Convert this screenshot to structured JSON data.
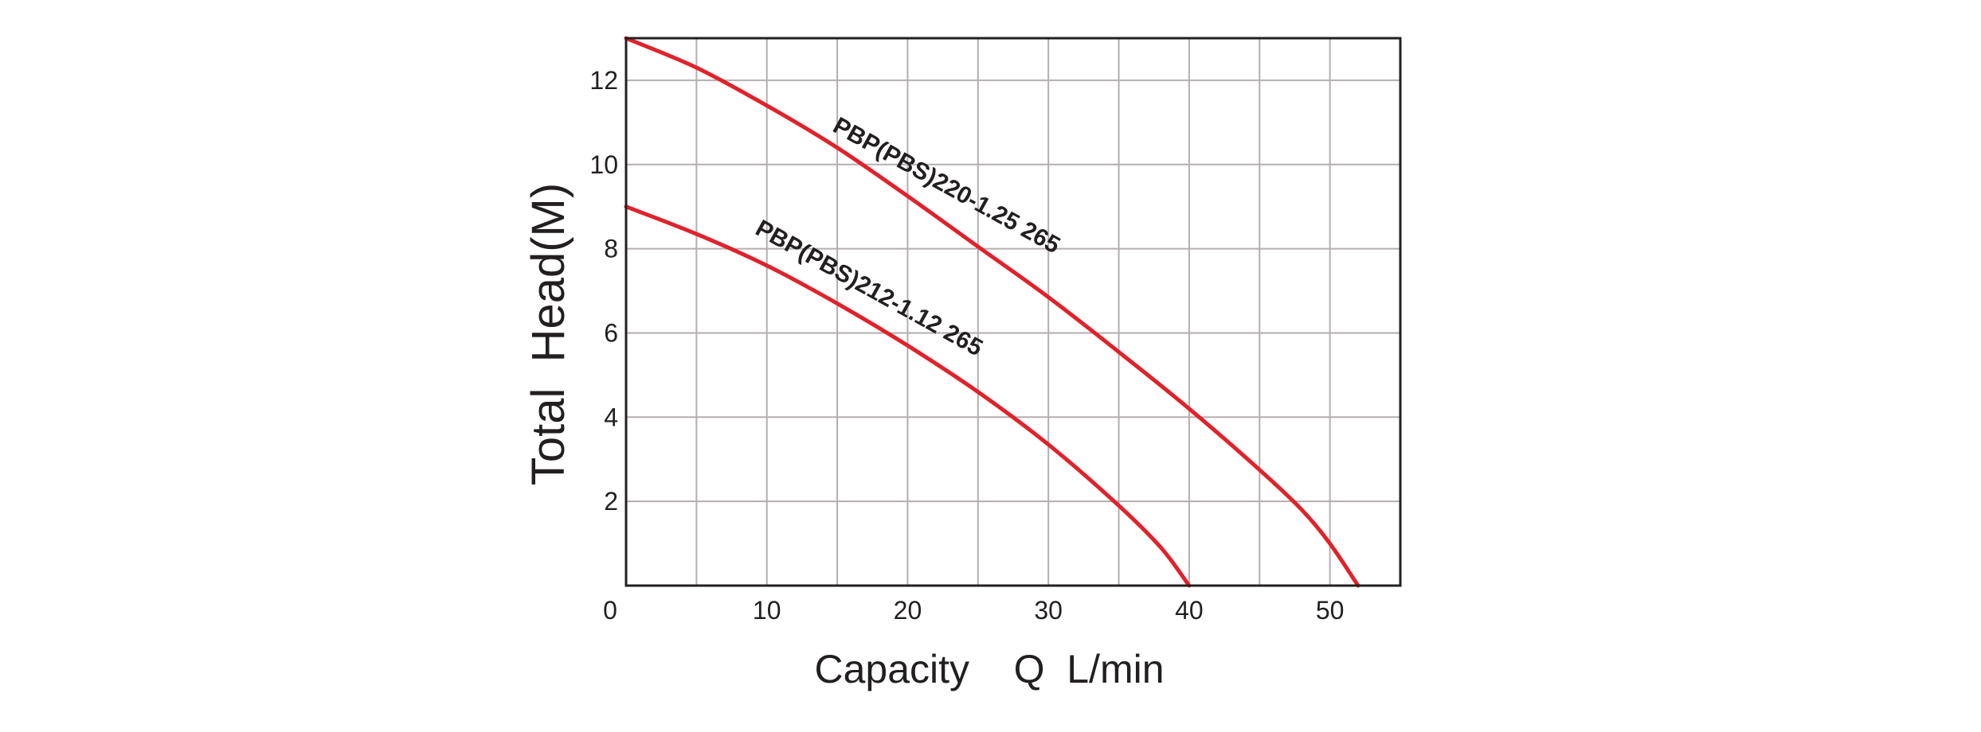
{
  "chart_data": {
    "type": "line",
    "xlabel": "Capacity    Q  L/min",
    "ylabel": "Total  Head(M)",
    "xlim": [
      0,
      55
    ],
    "ylim": [
      0,
      13
    ],
    "x_ticks": [
      {
        "value": 0,
        "label": "0"
      },
      {
        "value": 10,
        "label": "10"
      },
      {
        "value": 20,
        "label": "20"
      },
      {
        "value": 30,
        "label": "30"
      },
      {
        "value": 40,
        "label": "40"
      },
      {
        "value": 50,
        "label": "50"
      }
    ],
    "y_ticks": [
      {
        "value": 2,
        "label": "2"
      },
      {
        "value": 4,
        "label": "4"
      },
      {
        "value": 6,
        "label": "6"
      },
      {
        "value": 8,
        "label": "8"
      },
      {
        "value": 10,
        "label": "10"
      },
      {
        "value": 12,
        "label": "12"
      }
    ],
    "grid": true,
    "x_grid_step": 5,
    "y_grid_step": 2,
    "series": [
      {
        "name": "PBP(PBS)220-1.25 265",
        "color": "#e0222b",
        "x": [
          0,
          5,
          10,
          15,
          20,
          25,
          30,
          35,
          40,
          45,
          48,
          50,
          52
        ],
        "y": [
          13.0,
          12.3,
          11.4,
          10.4,
          9.25,
          8.05,
          6.85,
          5.55,
          4.2,
          2.75,
          1.8,
          1.0,
          0
        ]
      },
      {
        "name": "PBP(PBS)212-1.12 265",
        "color": "#e0222b",
        "x": [
          0,
          5,
          10,
          15,
          20,
          25,
          30,
          35,
          38,
          40
        ],
        "y": [
          9.0,
          8.35,
          7.6,
          6.7,
          5.7,
          4.6,
          3.35,
          1.9,
          0.9,
          0
        ]
      }
    ]
  }
}
